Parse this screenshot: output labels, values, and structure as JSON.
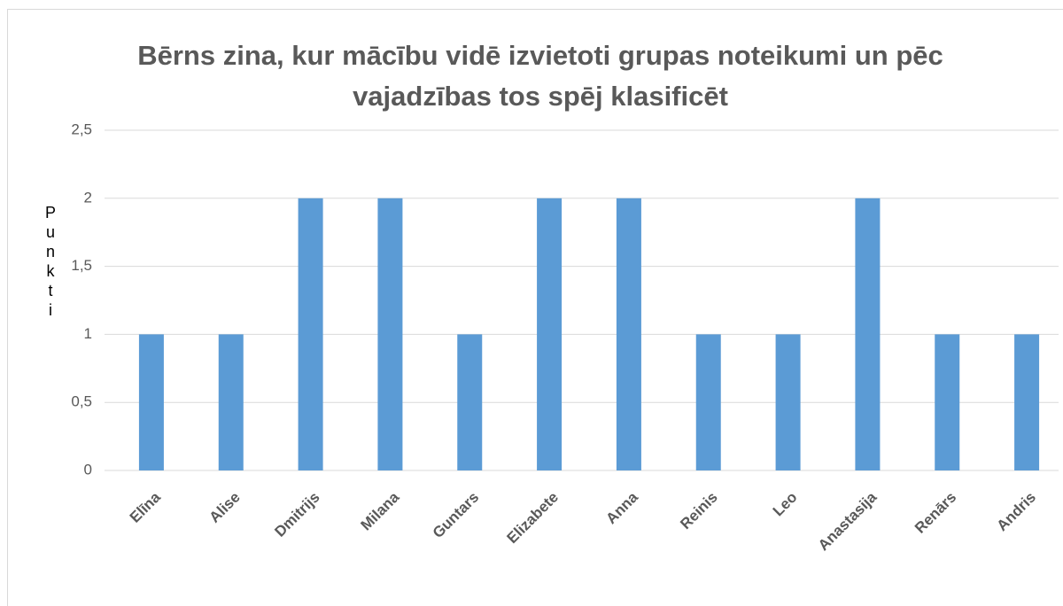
{
  "chart_data": {
    "type": "bar",
    "title": "Bērns zina, kur mācību vidē izvietoti grupas noteikumi un pēc vajadzības tos spēj klasificēt",
    "y_label": "Punkti",
    "categories": [
      "Elīna",
      "Alise",
      "Dmitrijs",
      "Milana",
      "Guntars",
      "Elizabete",
      "Anna",
      "Reinis",
      "Leo",
      "Anastasija",
      "Renārs",
      "Andris"
    ],
    "values": [
      1,
      1,
      2,
      2,
      1,
      2,
      2,
      1,
      1,
      2,
      1,
      1
    ],
    "color": "#5b9bd5",
    "ylim": [
      0,
      2.5
    ],
    "yticks": [
      0,
      {
        "value": 0.5,
        "label": "0,5"
      },
      1,
      {
        "value": 1.5,
        "label": "1,5"
      },
      2,
      {
        "value": 2.5,
        "label": "2,5"
      }
    ],
    "grid": true
  }
}
